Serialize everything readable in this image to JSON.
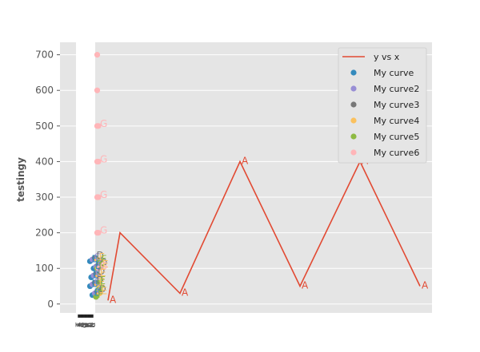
{
  "chart_data": {
    "type": "line",
    "title": "",
    "xlabel": "",
    "ylabel": "testingy",
    "ylim": [
      -25,
      735
    ],
    "yticks": [
      0,
      100,
      200,
      300,
      400,
      500,
      600,
      700
    ],
    "grid": true,
    "legend_position": "top-right",
    "xtick_labels": [
      "T",
      "S",
      "E",
      "S",
      "T",
      "I",
      "N",
      "G",
      "T",
      "H",
      "R",
      "E",
      "E",
      "L",
      "I",
      "N",
      "E"
    ],
    "line": {
      "name": "y vs x",
      "color": "#E24A33",
      "x": [
        10,
        20,
        70,
        120,
        170,
        220,
        270
      ],
      "y": [
        10,
        200,
        30,
        400,
        50,
        400,
        50
      ],
      "labels": [
        "A",
        "",
        "A",
        "A",
        "A",
        "A",
        "A"
      ]
    },
    "scatter_series": [
      {
        "name": "My curve",
        "color": "#348ABD",
        "x": [
          -5,
          -3,
          -5,
          -2,
          -4
        ],
        "y": [
          50,
          25,
          120,
          100,
          75
        ],
        "labels": [
          "B",
          "B",
          "B",
          "B",
          "B"
        ]
      },
      {
        "name": "My curve2",
        "color": "#988ED5",
        "x": [
          -3,
          -1,
          -3,
          0,
          -2
        ],
        "y": [
          55,
          30,
          125,
          105,
          80
        ],
        "labels": [
          "C",
          "C",
          "C",
          "C",
          "C"
        ]
      },
      {
        "name": "My curve3",
        "color": "#777777",
        "x": [
          -1,
          1,
          -1,
          2,
          0
        ],
        "y": [
          60,
          35,
          130,
          110,
          85
        ],
        "labels": [
          "D",
          "D",
          "D",
          "D",
          "D"
        ]
      },
      {
        "name": "My curve4",
        "color": "#FBC15E",
        "x": [
          1,
          3,
          1,
          4,
          2
        ],
        "y": [
          55,
          30,
          125,
          105,
          80
        ],
        "labels": [
          "E",
          "E",
          "E",
          "E",
          "E"
        ]
      },
      {
        "name": "My curve5",
        "color": "#8EBA42",
        "x": [
          2,
          0,
          3,
          1,
          2
        ],
        "y": [
          60,
          20,
          120,
          100,
          40
        ],
        "labels": [
          "F",
          "F",
          "F",
          "F",
          "F"
        ]
      },
      {
        "name": "My curve6",
        "color": "#FFB5B8",
        "x": [
          1,
          1,
          1,
          1,
          1,
          1,
          2,
          2,
          2,
          2,
          2
        ],
        "y": [
          700,
          600,
          500,
          400,
          300,
          200,
          500,
          400,
          300,
          200,
          100
        ],
        "labels": [
          "",
          "",
          "",
          "",
          "",
          "",
          "G",
          "G",
          "G",
          "G",
          "G"
        ]
      }
    ]
  }
}
